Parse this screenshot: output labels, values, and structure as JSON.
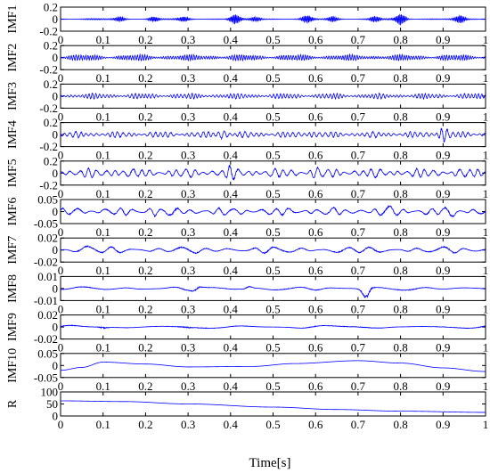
{
  "chart_data": {
    "type": "line",
    "xlabel": "Time[s]",
    "xlim": [
      0,
      1
    ],
    "x_ticks": [
      "0",
      "0.1",
      "0.2",
      "0.3",
      "0.4",
      "0.5",
      "0.6",
      "0.7",
      "0.8",
      "0.9",
      "1"
    ],
    "series_color": "#0000ff",
    "grid": false,
    "panels": [
      {
        "ylabel": "IMF1",
        "ylim": [
          -0.2,
          0.2
        ],
        "y_ticks": [
          "0.2",
          "0",
          "-0.2"
        ],
        "style": {
          "amp": 0.012,
          "cycles": 300,
          "env": 6,
          "bursts": [
            [
              0.41,
              0.07
            ],
            [
              0.58,
              0.05
            ],
            [
              0.8,
              0.08
            ],
            [
              0.94,
              0.05
            ],
            [
              0.74,
              0.04
            ],
            [
              0.22,
              0.035
            ],
            [
              0.29,
              0.03
            ],
            [
              0.14,
              0.03
            ],
            [
              0.46,
              0.03
            ],
            [
              0.64,
              0.035
            ]
          ]
        }
      },
      {
        "ylabel": "IMF2",
        "ylim": [
          -0.2,
          0.2
        ],
        "y_ticks": [
          "0.2",
          "0",
          "-0.2"
        ],
        "style": {
          "amp": 0.05,
          "cycles": 180,
          "env": 8
        }
      },
      {
        "ylabel": "IMF3",
        "ylim": [
          -0.2,
          0.2
        ],
        "y_ticks": [
          "0.2",
          "0",
          "-0.2"
        ],
        "style": {
          "amp": 0.045,
          "cycles": 120,
          "env": 9
        }
      },
      {
        "ylabel": "IMF4",
        "ylim": [
          -0.2,
          0.2
        ],
        "y_ticks": [
          "0.2",
          "0",
          "-0.2"
        ],
        "style": {
          "amp": 0.05,
          "cycles": 80,
          "env": 10,
          "bursts": [
            [
              0.38,
              0.05
            ],
            [
              0.9,
              0.09
            ],
            [
              0.59,
              0.03
            ]
          ]
        }
      },
      {
        "ylabel": "IMF5",
        "ylim": [
          -0.2,
          0.2
        ],
        "y_ticks": [
          "0.2",
          "0",
          "-0.2"
        ],
        "style": {
          "amp": 0.075,
          "cycles": 48,
          "env": 9,
          "bursts": [
            [
              0.4,
              0.05
            ],
            [
              0.6,
              0.04
            ],
            [
              0.13,
              0.03
            ]
          ]
        }
      },
      {
        "ylabel": "IMF6",
        "ylim": [
          -0.05,
          0.05
        ],
        "y_ticks": [
          "0.05",
          "0",
          "-0.05"
        ],
        "style": {
          "amp": 0.016,
          "cycles": 30,
          "env": 8,
          "bursts": [
            [
              0.22,
              0.012
            ],
            [
              0.78,
              0.014
            ],
            [
              0.92,
              0.012
            ]
          ]
        }
      },
      {
        "ylabel": "IMF7",
        "ylim": [
          -0.02,
          0.02
        ],
        "y_ticks": [
          "0.02",
          "0",
          "-0.02"
        ],
        "style": {
          "amp": 0.0055,
          "cycles": 18,
          "env": 5,
          "bursts": [
            [
              0.06,
              0.003
            ]
          ]
        }
      },
      {
        "ylabel": "IMF8",
        "ylim": [
          -0.01,
          0.01
        ],
        "y_ticks": [
          "0.01",
          "0",
          "-0.01"
        ],
        "style": {
          "amp": 0.0015,
          "cycles": 10,
          "env": 4,
          "bursts": [
            [
              0.72,
              0.007
            ],
            [
              0.32,
              0.0025
            ],
            [
              0.44,
              0.002
            ]
          ]
        }
      },
      {
        "ylabel": "IMF9",
        "ylim": [
          -0.02,
          0.02
        ],
        "y_ticks": [
          "0.02",
          "0",
          "-0.02"
        ],
        "style": {
          "amp": 0.003,
          "cycles": 5,
          "env": 3,
          "bursts": [
            [
              0.1,
              0.005
            ],
            [
              0.3,
              0.002
            ]
          ]
        }
      },
      {
        "ylabel": "IMF10",
        "ylim": [
          -0.05,
          0.05
        ],
        "y_ticks": [
          "0.05",
          "0",
          "-0.05"
        ],
        "style": {
          "trend": [
            [
              0,
              -0.02
            ],
            [
              0.05,
              -0.008
            ],
            [
              0.1,
              0.014
            ],
            [
              0.2,
              0.006
            ],
            [
              0.3,
              -0.006
            ],
            [
              0.45,
              -0.004
            ],
            [
              0.55,
              0.008
            ],
            [
              0.7,
              0.02
            ],
            [
              0.8,
              0.01
            ],
            [
              0.9,
              -0.01
            ],
            [
              1,
              -0.025
            ]
          ]
        }
      },
      {
        "ylabel": "R",
        "ylim": [
          0,
          100
        ],
        "y_ticks": [
          "100",
          "50",
          "0"
        ],
        "style": {
          "trend": [
            [
              0,
              63
            ],
            [
              0.15,
              60
            ],
            [
              0.3,
              50
            ],
            [
              0.5,
              37
            ],
            [
              0.65,
              27
            ],
            [
              0.8,
              20
            ],
            [
              1,
              15
            ]
          ]
        }
      }
    ]
  }
}
